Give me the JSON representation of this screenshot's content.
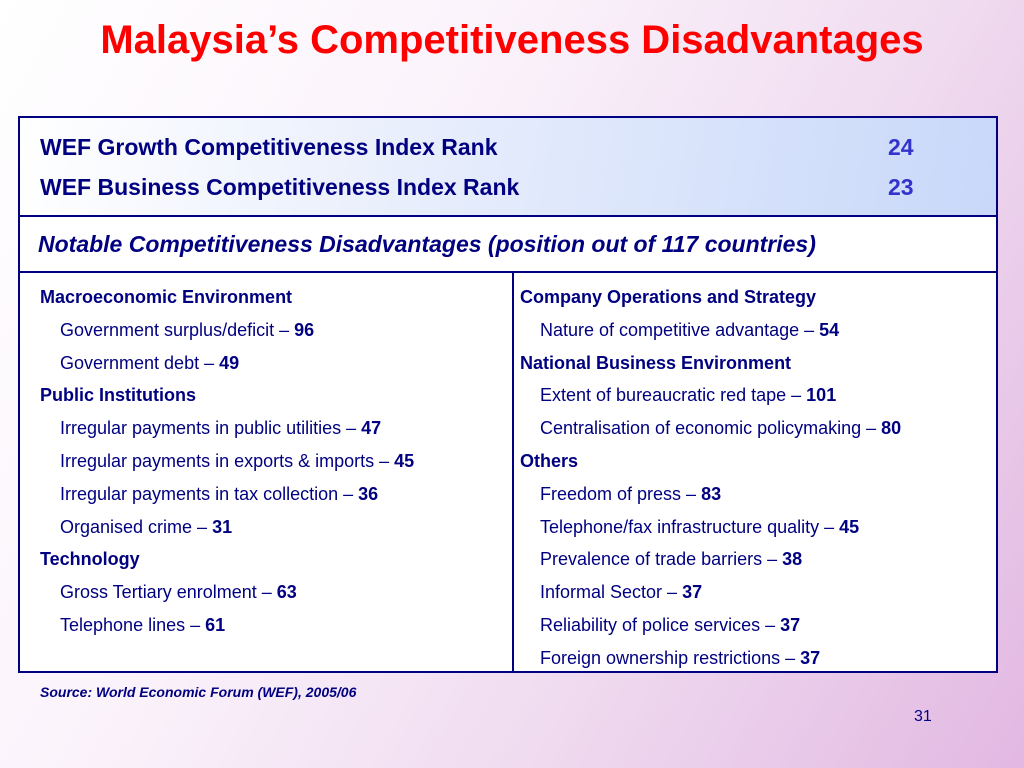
{
  "title": "Malaysia’s Competitiveness Disadvantages",
  "ranks": [
    {
      "label": "WEF Growth Competitiveness Index Rank",
      "value": "24"
    },
    {
      "label": "WEF Business Competitiveness Index Rank",
      "value": "23"
    }
  ],
  "notable_heading": "Notable Competitiveness Disadvantages (position out of 117 countries)",
  "left_column": {
    "g1": {
      "heading": "Macroeconomic Environment",
      "items": [
        {
          "label": "Government surplus/deficit – ",
          "value": "96"
        },
        {
          "label": "Government debt – ",
          "value": "49"
        }
      ]
    },
    "g2": {
      "heading": "Public Institutions",
      "items": [
        {
          "label": "Irregular payments in public utilities – ",
          "value": "47"
        },
        {
          "label": "Irregular payments in exports & imports – ",
          "value": "45"
        },
        {
          "label": "Irregular payments in tax collection – ",
          "value": "36"
        },
        {
          "label": "Organised crime – ",
          "value": "31"
        }
      ]
    },
    "g3": {
      "heading": "Technology",
      "items": [
        {
          "label": "Gross Tertiary enrolment – ",
          "value": "63"
        },
        {
          "label": "Telephone lines – ",
          "value": "61"
        }
      ]
    }
  },
  "right_column": {
    "g1": {
      "heading": "Company Operations and Strategy",
      "items": [
        {
          "label": "Nature of competitive advantage – ",
          "value": "54"
        }
      ]
    },
    "g2": {
      "heading": "National Business Environment",
      "items": [
        {
          "label": "Extent of bureaucratic red tape – ",
          "value": "101"
        },
        {
          "label": "Centralisation of economic policymaking – ",
          "value": "80"
        }
      ]
    },
    "g3": {
      "heading": "Others",
      "items": [
        {
          "label": "Freedom of press – ",
          "value": "83"
        },
        {
          "label": "Telephone/fax infrastructure quality – ",
          "value": "45"
        },
        {
          "label": "Prevalence of trade barriers – ",
          "value": "38"
        },
        {
          "label": "Informal Sector – ",
          "value": "37"
        },
        {
          "label": "Reliability of police services – ",
          "value": "37"
        },
        {
          "label": "Foreign ownership restrictions – ",
          "value": "37"
        }
      ]
    }
  },
  "source": "Source: World Economic Forum (WEF), 2005/06",
  "page_number": "31",
  "colors": {
    "title": "#ff0000",
    "text": "#000080",
    "rank_value": "#3333cc"
  }
}
